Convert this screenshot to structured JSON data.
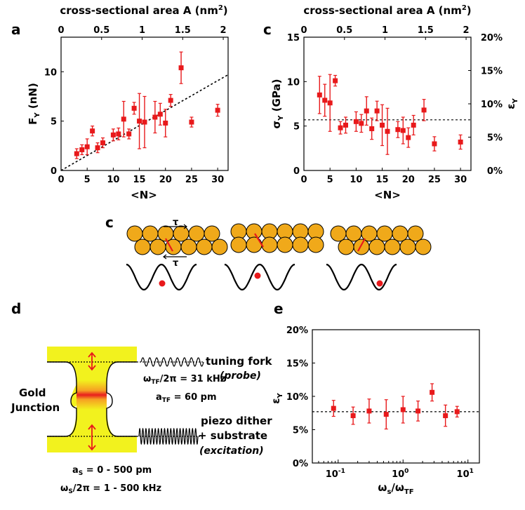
{
  "colors": {
    "marker": "#e8191b",
    "gold": "#f0a91a",
    "yellow": "#f2f21e",
    "line": "#000000"
  },
  "panel_a": {
    "letter": "a",
    "xlabel": "<N>",
    "ylabel": "F",
    "ylabel_sub": "Y",
    "ylabel_unit": " (nN)",
    "top_label": "cross-sectional area A (nm",
    "top_label_sup": "2",
    "top_label_close": ")",
    "xticks": [
      "0",
      "5",
      "10",
      "15",
      "20",
      "25",
      "30"
    ],
    "yticks": [
      "0",
      "5",
      "10"
    ],
    "top_ticks": [
      "0",
      "0.5",
      "1",
      "1.5",
      "2"
    ]
  },
  "panel_b": {
    "letter": "c",
    "xlabel": "<N>",
    "ylabel": "σ",
    "ylabel_sub": "Y",
    "ylabel_unit": " (GPa)",
    "right_label": "ε",
    "right_label_sub": "Y",
    "top_label": "cross-sectional area A (nm",
    "top_label_sup": "2",
    "top_label_close": ")",
    "xticks": [
      "0",
      "5",
      "10",
      "15",
      "20",
      "25",
      "30"
    ],
    "yticks": [
      "0",
      "5",
      "10",
      "15"
    ],
    "right_ticks": [
      "0%",
      "5%",
      "10%",
      "15%",
      "20%"
    ],
    "top_ticks": [
      "0",
      "0.5",
      "1",
      "1.5",
      "2"
    ]
  },
  "panel_c": {
    "letter": "c",
    "tau": "τ"
  },
  "panel_d": {
    "letter": "d",
    "junction": [
      "Gold",
      "Junction"
    ],
    "tuning_fork": "tuning fork",
    "probe": "(probe)",
    "omega_tf": [
      "ω",
      "TF",
      "/2π = 31 kHz"
    ],
    "a_tf": [
      "a",
      "TF",
      " = 60 pm"
    ],
    "piezo": "piezo dither",
    "substrate": "+ substrate",
    "excitation": "(excitation)",
    "a_s": [
      "a",
      "S",
      " = 0 - 500 pm"
    ],
    "omega_s": [
      "ω",
      "S",
      "/2π = 1 - 500 kHz"
    ]
  },
  "panel_e": {
    "letter": "e",
    "ylabel": "ε",
    "ylabel_sub": "Y",
    "xlabel": [
      "ω",
      "s",
      "/ω",
      "TF"
    ],
    "yticks": [
      "0%",
      "5%",
      "10%",
      "15%",
      "20%"
    ],
    "xticks": [
      [
        "10",
        "-1"
      ],
      [
        "10",
        "0"
      ],
      [
        "10",
        "1"
      ]
    ]
  },
  "chart_data": [
    {
      "type": "scatter",
      "panel": "a",
      "xlabel": "<N>",
      "ylabel": "F_Y (nN)",
      "top_xlabel": "cross-sectional area A (nm²)",
      "xlim": [
        0,
        32
      ],
      "ylim": [
        0,
        13.5
      ],
      "top_xlim": [
        0,
        2.06
      ],
      "points": [
        {
          "x": 3,
          "y": 1.7,
          "err": 0.5
        },
        {
          "x": 4,
          "y": 2.1,
          "err": 0.5
        },
        {
          "x": 5,
          "y": 2.4,
          "err": 0.8
        },
        {
          "x": 6,
          "y": 4.0,
          "err": 0.5
        },
        {
          "x": 7,
          "y": 2.3,
          "err": 0.5
        },
        {
          "x": 8,
          "y": 2.8,
          "err": 0.5
        },
        {
          "x": 10,
          "y": 3.6,
          "err": 0.6
        },
        {
          "x": 11,
          "y": 3.7,
          "err": 0.6
        },
        {
          "x": 12,
          "y": 5.2,
          "err": 1.8
        },
        {
          "x": 13,
          "y": 3.7,
          "err": 0.5
        },
        {
          "x": 14,
          "y": 6.3,
          "err": 0.6
        },
        {
          "x": 15,
          "y": 5.0,
          "err": 2.8
        },
        {
          "x": 16,
          "y": 4.9,
          "err": 2.6
        },
        {
          "x": 18,
          "y": 5.4,
          "err": 1.6
        },
        {
          "x": 19,
          "y": 5.7,
          "err": 1.1
        },
        {
          "x": 20,
          "y": 4.8,
          "err": 1.4
        },
        {
          "x": 21,
          "y": 7.1,
          "err": 0.6
        },
        {
          "x": 23,
          "y": 10.4,
          "err": 1.6
        },
        {
          "x": 25,
          "y": 4.9,
          "err": 0.5
        },
        {
          "x": 30,
          "y": 6.1,
          "err": 0.6
        }
      ],
      "fit_line": {
        "x": [
          0,
          32
        ],
        "y": [
          0,
          9.7
        ],
        "style": "dashed"
      }
    },
    {
      "type": "scatter",
      "panel": "c",
      "xlabel": "<N>",
      "ylabel": "σ_Y (GPa)",
      "right_ylabel": "ε_Y",
      "top_xlabel": "cross-sectional area A (nm²)",
      "xlim": [
        0,
        32
      ],
      "ylim": [
        0,
        15
      ],
      "right_ylim": [
        0,
        20
      ],
      "top_xlim": [
        0,
        2.06
      ],
      "points": [
        {
          "x": 3,
          "y": 8.5,
          "err": 2.1
        },
        {
          "x": 4,
          "y": 7.9,
          "err": 1.8
        },
        {
          "x": 5,
          "y": 7.6,
          "err": 3.2
        },
        {
          "x": 6,
          "y": 10.1,
          "err": 0.6
        },
        {
          "x": 7,
          "y": 4.8,
          "err": 0.7
        },
        {
          "x": 8,
          "y": 5.1,
          "err": 0.9
        },
        {
          "x": 10,
          "y": 5.5,
          "err": 1.1
        },
        {
          "x": 11,
          "y": 5.3,
          "err": 1.0
        },
        {
          "x": 12,
          "y": 6.7,
          "err": 1.6
        },
        {
          "x": 13,
          "y": 4.7,
          "err": 1.2
        },
        {
          "x": 14,
          "y": 6.7,
          "err": 1.1
        },
        {
          "x": 15,
          "y": 5.1,
          "err": 2.3
        },
        {
          "x": 16,
          "y": 4.4,
          "err": 2.6
        },
        {
          "x": 18,
          "y": 4.6,
          "err": 0.9
        },
        {
          "x": 19,
          "y": 4.5,
          "err": 1.5
        },
        {
          "x": 20,
          "y": 3.7,
          "err": 1.1
        },
        {
          "x": 21,
          "y": 5.1,
          "err": 1.1
        },
        {
          "x": 23,
          "y": 6.8,
          "err": 1.2
        },
        {
          "x": 25,
          "y": 3.0,
          "err": 0.8
        },
        {
          "x": 30,
          "y": 3.2,
          "err": 0.8
        }
      ],
      "ref_line": {
        "y": 5.7,
        "style": "dashed"
      }
    },
    {
      "type": "scatter",
      "panel": "e",
      "xlabel": "ω_s/ω_TF",
      "ylabel": "ε_Y",
      "xscale": "log",
      "xlim": [
        0.04,
        15
      ],
      "ylim": [
        0,
        20
      ],
      "points": [
        {
          "x": 0.085,
          "y": 8.2,
          "err": 1.2
        },
        {
          "x": 0.17,
          "y": 7.1,
          "err": 1.3
        },
        {
          "x": 0.3,
          "y": 7.8,
          "err": 1.8
        },
        {
          "x": 0.55,
          "y": 7.3,
          "err": 2.2
        },
        {
          "x": 1.0,
          "y": 8.0,
          "err": 2.0
        },
        {
          "x": 1.7,
          "y": 7.8,
          "err": 1.5
        },
        {
          "x": 2.8,
          "y": 10.6,
          "err": 1.3
        },
        {
          "x": 4.5,
          "y": 7.1,
          "err": 1.6
        },
        {
          "x": 6.8,
          "y": 7.7,
          "err": 0.8
        }
      ],
      "ref_line": {
        "y": 7.7,
        "style": "dashed"
      }
    }
  ]
}
